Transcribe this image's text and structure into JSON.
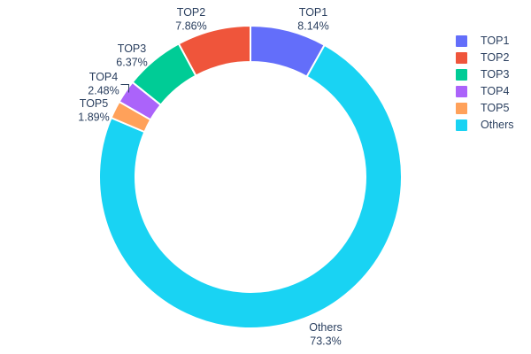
{
  "chart_data": {
    "type": "pie",
    "subtype": "donut",
    "title": "",
    "labels": [
      "TOP1",
      "TOP2",
      "TOP3",
      "TOP4",
      "TOP5",
      "Others"
    ],
    "values": [
      8.14,
      7.86,
      6.37,
      2.48,
      1.89,
      73.26
    ],
    "display_percents": [
      "8.14%",
      "7.86%",
      "6.37%",
      "2.48%",
      "1.89%",
      "73.3%"
    ],
    "colors": [
      "#636efa",
      "#ef553b",
      "#00cc96",
      "#ab63fa",
      "#ffa15a",
      "#19d3f3"
    ],
    "hole_ratio": 0.76,
    "start": "12-oclock",
    "first_slice_direction": "clockwise",
    "slice_border_color": "#ffffff",
    "text_color": "#2a3f5f",
    "background_color": "#ffffff",
    "legend_position": "right",
    "legend_entries": [
      "TOP1",
      "TOP2",
      "TOP3",
      "TOP4",
      "TOP5",
      "Others"
    ]
  }
}
